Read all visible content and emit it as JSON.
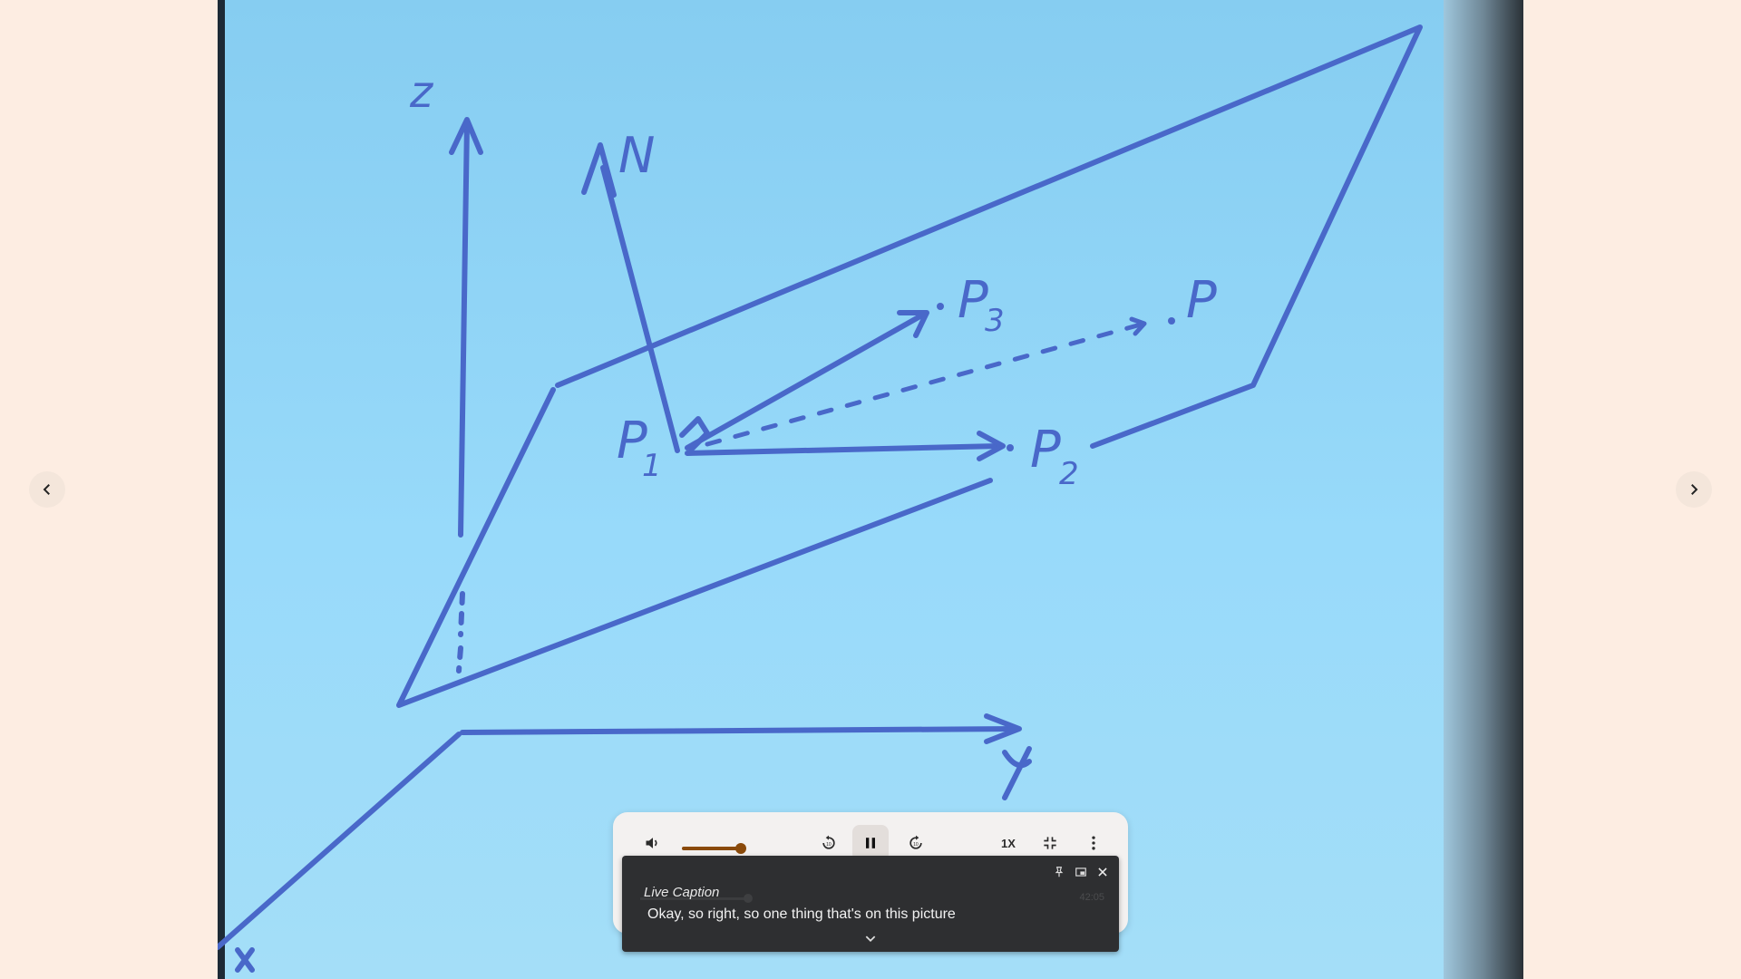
{
  "video": {
    "board_labels": {
      "z_axis": "z",
      "y_axis": "y",
      "x_axis": "x",
      "normal_vector": "N",
      "p1": "P",
      "p1_sub": "1",
      "p2": "P",
      "p2_sub": "2",
      "p3": "P",
      "p3_sub": "3",
      "p": "P"
    }
  },
  "navigation": {
    "prev_icon": "chevron-left-icon",
    "next_icon": "chevron-right-icon"
  },
  "player": {
    "volume_level": 0.9,
    "speed_label": "1X",
    "accent_color": "#8a4a0a"
  },
  "caption": {
    "title": "Live Caption",
    "text": "Okay, so right, so one thing that's on this picture",
    "time": "42:05"
  }
}
